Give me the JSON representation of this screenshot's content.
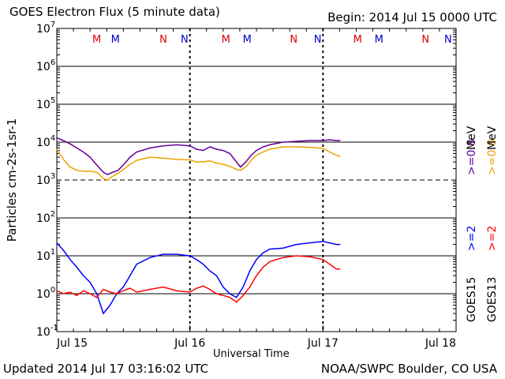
{
  "header": {
    "title": "GOES Electron Flux (5 minute data)",
    "begin": "Begin: 2014 Jul 15 0000 UTC"
  },
  "footer": {
    "updated": "Updated 2014 Jul 17 03:16:02 UTC",
    "credit": "NOAA/SWPC Boulder, CO USA"
  },
  "chart_data": {
    "type": "line",
    "title": "GOES Electron Flux (5 minute data)",
    "xlabel": "Universal Time",
    "ylabel": "Particles cm-2s-1sr-1",
    "yscale": "log",
    "ylim": [
      0.1,
      10000000
    ],
    "xlim": [
      0,
      3
    ],
    "x_unit": "days since 2014 Jul 15 0000 UTC",
    "x_tick_labels": [
      "Jul 15",
      "Jul 16",
      "Jul 17",
      "Jul 18"
    ],
    "y_tick_labels": [
      {
        "base": "10",
        "exp": "-1"
      },
      {
        "base": "10",
        "exp": "0"
      },
      {
        "base": "10",
        "exp": "1"
      },
      {
        "base": "10",
        "exp": "2"
      },
      {
        "base": "10",
        "exp": "3"
      },
      {
        "base": "10",
        "exp": "4"
      },
      {
        "base": "10",
        "exp": "5"
      },
      {
        "base": "10",
        "exp": "6"
      },
      {
        "base": "10",
        "exp": "7"
      }
    ],
    "threshold": {
      "value": 1000,
      "style": "dashed"
    },
    "grid": true,
    "mn_markers": [
      {
        "label": "M",
        "x": 0.3,
        "color": "#dd0000"
      },
      {
        "label": "M",
        "x": 0.44,
        "color": "#0000cc"
      },
      {
        "label": "N",
        "x": 0.8,
        "color": "#dd0000"
      },
      {
        "label": "N",
        "x": 0.96,
        "color": "#0000cc"
      },
      {
        "label": "M",
        "x": 1.27,
        "color": "#dd0000"
      },
      {
        "label": "M",
        "x": 1.43,
        "color": "#0000cc"
      },
      {
        "label": "N",
        "x": 1.78,
        "color": "#dd0000"
      },
      {
        "label": "N",
        "x": 1.96,
        "color": "#0000cc"
      },
      {
        "label": "M",
        "x": 2.26,
        "color": "#dd0000"
      },
      {
        "label": "M",
        "x": 2.42,
        "color": "#0000cc"
      },
      {
        "label": "N",
        "x": 2.77,
        "color": "#dd0000"
      },
      {
        "label": "N",
        "x": 2.94,
        "color": "#0000cc"
      }
    ],
    "legend_right": {
      "goes15": "GOES15",
      "goes13": "GOES13",
      "ge2_15": ">=2",
      "ge2_13": ">=2",
      "ge08_15": ">=0.8",
      "ge08_13": ">=0.8",
      "mev": "MeV"
    },
    "series": [
      {
        "name": "GOES15 >=0.8 MeV",
        "color": "#660099",
        "x": [
          0,
          0.05,
          0.1,
          0.15,
          0.2,
          0.25,
          0.3,
          0.35,
          0.38,
          0.42,
          0.46,
          0.5,
          0.55,
          0.6,
          0.7,
          0.8,
          0.9,
          1.0,
          1.05,
          1.1,
          1.15,
          1.2,
          1.25,
          1.3,
          1.35,
          1.38,
          1.42,
          1.46,
          1.5,
          1.55,
          1.6,
          1.7,
          1.8,
          1.9,
          2.0,
          2.05,
          2.1,
          2.13
        ],
        "y": [
          13000,
          11000,
          9000,
          7000,
          5500,
          4000,
          2500,
          1600,
          1400,
          1600,
          1800,
          2500,
          4000,
          5500,
          7000,
          8000,
          8500,
          8000,
          6500,
          6000,
          7500,
          6500,
          6000,
          5000,
          3000,
          2200,
          3000,
          4500,
          6000,
          7500,
          8500,
          10000,
          10500,
          11000,
          11000,
          11500,
          11000,
          11000
        ]
      },
      {
        "name": "GOES13 >=0.8 MeV",
        "color": "#f0a000",
        "x": [
          0,
          0.05,
          0.1,
          0.15,
          0.2,
          0.25,
          0.3,
          0.35,
          0.38,
          0.42,
          0.46,
          0.5,
          0.55,
          0.6,
          0.7,
          0.8,
          0.9,
          1.0,
          1.05,
          1.1,
          1.15,
          1.2,
          1.25,
          1.3,
          1.35,
          1.38,
          1.42,
          1.46,
          1.5,
          1.55,
          1.6,
          1.7,
          1.8,
          1.9,
          2.0,
          2.05,
          2.1,
          2.13
        ],
        "y": [
          6500,
          3500,
          2200,
          1800,
          1700,
          1700,
          1600,
          1100,
          1000,
          1250,
          1500,
          1900,
          2600,
          3300,
          4000,
          3800,
          3500,
          3400,
          3000,
          3000,
          3200,
          2800,
          2600,
          2300,
          1900,
          1800,
          2200,
          3300,
          4500,
          5500,
          6500,
          7500,
          7500,
          7300,
          6800,
          5500,
          4500,
          4200
        ]
      },
      {
        "name": "GOES15 >=2 MeV",
        "color": "#0000ff",
        "x": [
          0,
          0.05,
          0.1,
          0.15,
          0.2,
          0.25,
          0.3,
          0.35,
          0.4,
          0.45,
          0.5,
          0.55,
          0.6,
          0.7,
          0.8,
          0.9,
          1.0,
          1.05,
          1.1,
          1.15,
          1.2,
          1.25,
          1.3,
          1.35,
          1.4,
          1.45,
          1.5,
          1.55,
          1.6,
          1.7,
          1.8,
          1.9,
          2.0,
          2.05,
          2.1,
          2.13
        ],
        "y": [
          22,
          14,
          8,
          5,
          3,
          2,
          1,
          0.3,
          0.5,
          1,
          1.5,
          3,
          6,
          9,
          11,
          11,
          10,
          8,
          6,
          4,
          3,
          1.5,
          1,
          0.8,
          1.5,
          4,
          8,
          12,
          15,
          16,
          20,
          22,
          24,
          22,
          20,
          20
        ]
      },
      {
        "name": "GOES13 >=2 MeV",
        "color": "#ff0000",
        "x": [
          0,
          0.05,
          0.1,
          0.15,
          0.2,
          0.25,
          0.3,
          0.35,
          0.4,
          0.45,
          0.5,
          0.55,
          0.6,
          0.7,
          0.8,
          0.9,
          1.0,
          1.05,
          1.1,
          1.15,
          1.2,
          1.25,
          1.3,
          1.35,
          1.4,
          1.45,
          1.5,
          1.55,
          1.6,
          1.7,
          1.8,
          1.9,
          2.0,
          2.05,
          2.1,
          2.13
        ],
        "y": [
          1.2,
          1.0,
          1.1,
          0.9,
          1.2,
          1.0,
          0.8,
          1.3,
          1.1,
          1.0,
          1.2,
          1.4,
          1.1,
          1.3,
          1.5,
          1.2,
          1.1,
          1.4,
          1.6,
          1.3,
          1.0,
          0.9,
          0.8,
          0.6,
          0.9,
          1.5,
          3,
          5,
          7,
          9,
          10,
          9.5,
          8,
          6,
          4.5,
          4.5
        ]
      }
    ]
  }
}
